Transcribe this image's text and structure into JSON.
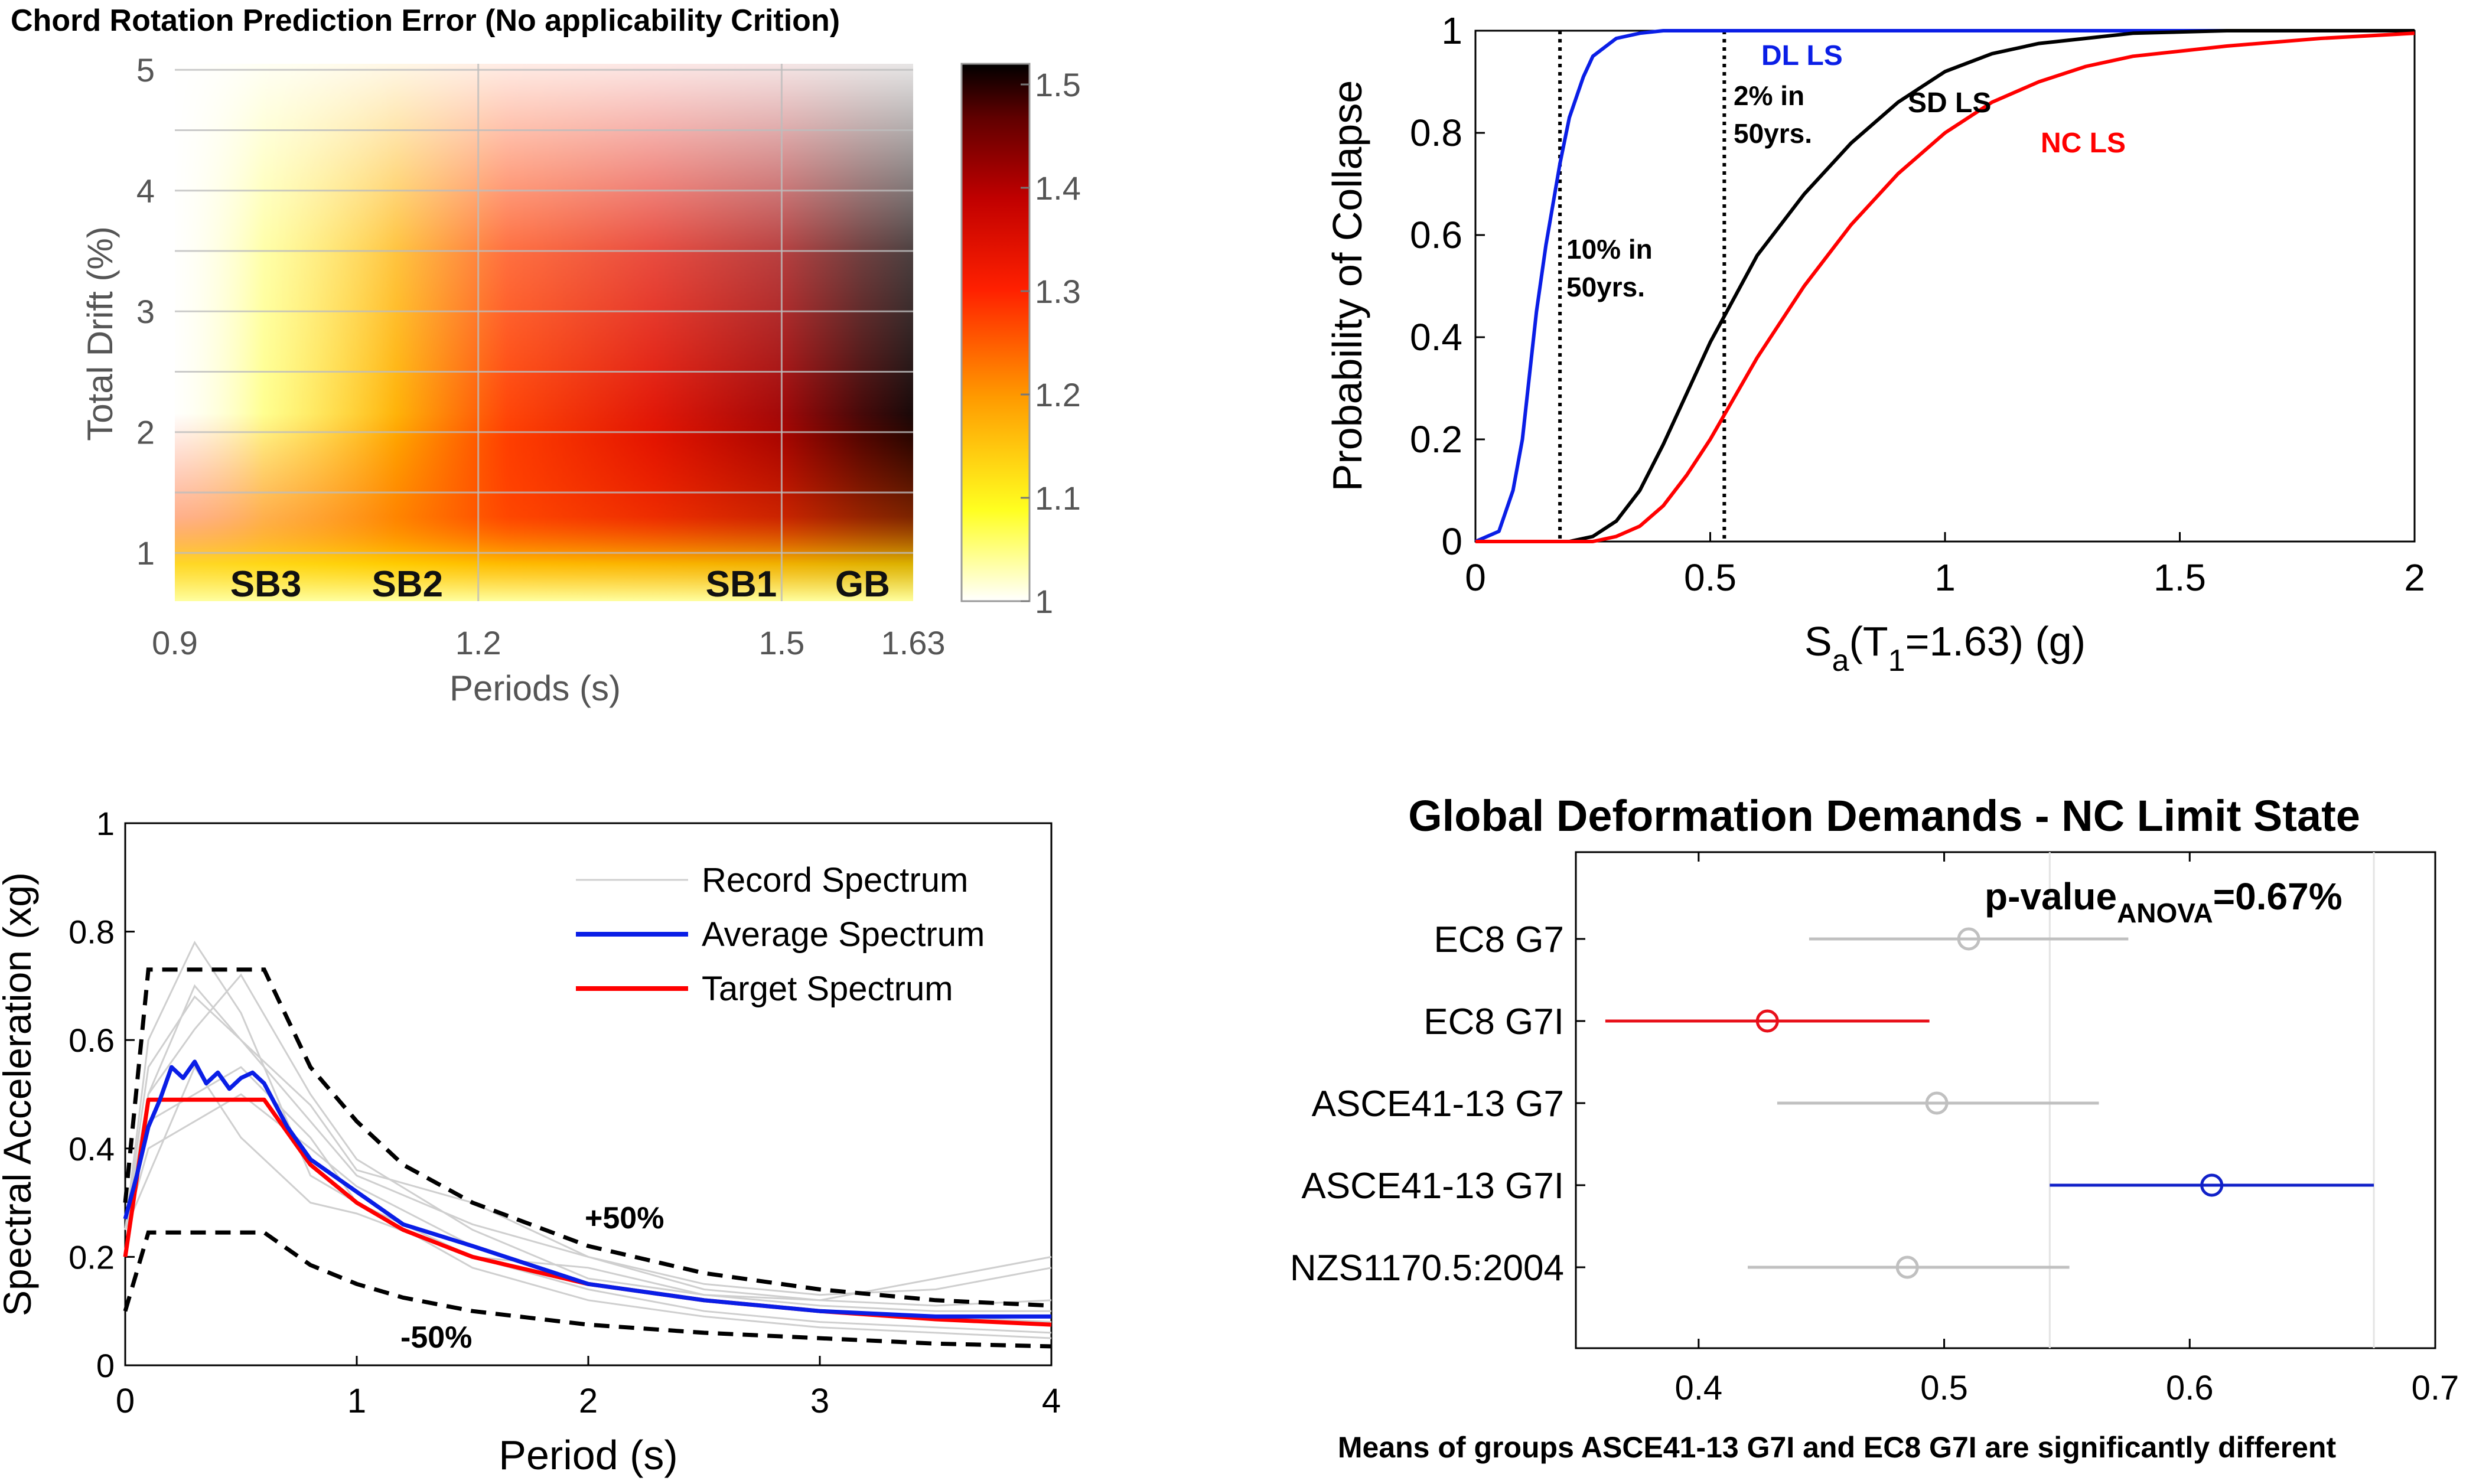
{
  "chart_data": [
    {
      "type": "heatmap",
      "title": "Chord Rotation Prediction Error (No applicability Crition)",
      "xlabel": "Periods (s)",
      "ylabel": "Total Drift (%)",
      "x_ticks": [
        "0.9",
        "1.2",
        "1.5",
        "1.63"
      ],
      "x_tick_values": [
        0.9,
        1.2,
        1.5,
        1.63
      ],
      "y_ticks": [
        "1",
        "2",
        "3",
        "4",
        "5"
      ],
      "xlim": [
        0.9,
        1.63
      ],
      "ylim": [
        0.6,
        5.05
      ],
      "grid": true,
      "colorbar": {
        "ticks": [
          "1",
          "1.1",
          "1.2",
          "1.3",
          "1.4",
          "1.5"
        ],
        "range": [
          1.0,
          1.52
        ],
        "colors": [
          "#ffffff",
          "#ffff20",
          "#ff9a00",
          "#ff2000",
          "#c00000",
          "#600000",
          "#000000"
        ]
      },
      "region_labels": [
        {
          "text": "SB3",
          "x": 0.99
        },
        {
          "text": "SB2",
          "x": 1.13
        },
        {
          "text": "SB1",
          "x": 1.46
        },
        {
          "text": "GB",
          "x": 1.58
        }
      ]
    },
    {
      "type": "line",
      "xlabel_parts": [
        "S",
        "a",
        "(T",
        "1",
        "=1.63) (g)"
      ],
      "ylabel": "Probability of Collapse",
      "xlim": [
        0,
        2
      ],
      "ylim": [
        0,
        1
      ],
      "x_ticks": [
        "0",
        "0.5",
        "1",
        "1.5",
        "2"
      ],
      "y_ticks": [
        "0",
        "0.2",
        "0.4",
        "0.6",
        "0.8",
        "1"
      ],
      "series": [
        {
          "name": "DL LS",
          "color": "#0a1ee6",
          "x": [
            0.0,
            0.05,
            0.08,
            0.1,
            0.13,
            0.15,
            0.18,
            0.2,
            0.23,
            0.25,
            0.3,
            0.35,
            0.4,
            0.5,
            2.0
          ],
          "y": [
            0.0,
            0.02,
            0.1,
            0.2,
            0.45,
            0.58,
            0.74,
            0.83,
            0.91,
            0.95,
            0.985,
            0.995,
            1.0,
            1.0,
            1.0
          ]
        },
        {
          "name": "SD LS",
          "color": "#000000",
          "x": [
            0.0,
            0.2,
            0.25,
            0.3,
            0.35,
            0.4,
            0.45,
            0.5,
            0.6,
            0.7,
            0.8,
            0.9,
            1.0,
            1.1,
            1.2,
            1.4,
            1.6,
            2.0
          ],
          "y": [
            0.0,
            0.0,
            0.01,
            0.04,
            0.1,
            0.19,
            0.29,
            0.39,
            0.56,
            0.68,
            0.78,
            0.86,
            0.92,
            0.955,
            0.975,
            0.995,
            1.0,
            1.0
          ]
        },
        {
          "name": "NC LS",
          "color": "#ff0000",
          "x": [
            0.0,
            0.25,
            0.3,
            0.35,
            0.4,
            0.45,
            0.5,
            0.55,
            0.6,
            0.7,
            0.8,
            0.9,
            1.0,
            1.1,
            1.2,
            1.3,
            1.4,
            1.6,
            1.8,
            2.0
          ],
          "y": [
            0.0,
            0.0,
            0.01,
            0.03,
            0.07,
            0.13,
            0.2,
            0.28,
            0.36,
            0.5,
            0.62,
            0.72,
            0.8,
            0.86,
            0.9,
            0.93,
            0.95,
            0.97,
            0.985,
            0.995
          ]
        }
      ],
      "vlines": [
        0.18,
        0.53
      ],
      "annotations": [
        {
          "lines": [
            "10% in",
            "50yrs."
          ]
        },
        {
          "lines": [
            "2% in",
            "50yrs."
          ]
        }
      ]
    },
    {
      "type": "line",
      "xlabel": "Period (s)",
      "ylabel": "Spectral Acceleration (xg)",
      "xlim": [
        0,
        4
      ],
      "ylim": [
        0,
        1
      ],
      "x_ticks": [
        "0",
        "1",
        "2",
        "3",
        "4"
      ],
      "y_ticks": [
        "0",
        "0.2",
        "0.4",
        "0.6",
        "0.8",
        "1"
      ],
      "legend": [
        "Record Spectrum",
        "Average Spectrum",
        "Target Spectrum"
      ],
      "legend_position": "top-right",
      "target": {
        "x": [
          0.0,
          0.1,
          0.6,
          0.8,
          1.0,
          1.2,
          1.5,
          2.0,
          2.5,
          3.0,
          3.5,
          4.0
        ],
        "y": [
          0.2,
          0.49,
          0.49,
          0.37,
          0.3,
          0.25,
          0.2,
          0.15,
          0.12,
          0.1,
          0.085,
          0.075
        ]
      },
      "average": {
        "x": [
          0.0,
          0.05,
          0.1,
          0.15,
          0.2,
          0.25,
          0.3,
          0.35,
          0.4,
          0.45,
          0.5,
          0.55,
          0.6,
          0.7,
          0.8,
          1.0,
          1.2,
          1.5,
          2.0,
          2.5,
          3.0,
          3.5,
          4.0
        ],
        "y": [
          0.27,
          0.35,
          0.44,
          0.49,
          0.55,
          0.53,
          0.56,
          0.52,
          0.54,
          0.51,
          0.53,
          0.54,
          0.52,
          0.44,
          0.38,
          0.32,
          0.26,
          0.22,
          0.15,
          0.12,
          0.1,
          0.09,
          0.09
        ]
      },
      "upper_bound": {
        "name": "+50%",
        "x": [
          0.0,
          0.1,
          0.6,
          0.8,
          1.0,
          1.2,
          1.5,
          2.0,
          2.5,
          3.0,
          3.5,
          4.0
        ],
        "y": [
          0.3,
          0.73,
          0.73,
          0.55,
          0.45,
          0.37,
          0.3,
          0.22,
          0.17,
          0.14,
          0.12,
          0.11
        ]
      },
      "lower_bound": {
        "name": "-50%",
        "x": [
          0.0,
          0.1,
          0.6,
          0.8,
          1.0,
          1.2,
          1.5,
          2.0,
          2.5,
          3.0,
          3.5,
          4.0
        ],
        "y": [
          0.1,
          0.245,
          0.245,
          0.185,
          0.15,
          0.125,
          0.1,
          0.075,
          0.06,
          0.05,
          0.04,
          0.035
        ]
      },
      "records": [
        {
          "x": [
            0.0,
            0.1,
            0.3,
            0.5,
            0.8,
            1.0,
            1.5,
            2.0,
            2.5,
            3.0,
            3.5,
            4.0
          ],
          "y": [
            0.25,
            0.5,
            0.7,
            0.6,
            0.45,
            0.35,
            0.26,
            0.2,
            0.15,
            0.13,
            0.14,
            0.18
          ]
        },
        {
          "x": [
            0.0,
            0.1,
            0.3,
            0.5,
            0.8,
            1.0,
            1.5,
            2.0,
            2.5,
            3.0,
            3.5,
            4.0
          ],
          "y": [
            0.25,
            0.4,
            0.45,
            0.5,
            0.4,
            0.33,
            0.22,
            0.15,
            0.12,
            0.1,
            0.09,
            0.08
          ]
        },
        {
          "x": [
            0.0,
            0.1,
            0.3,
            0.5,
            0.8,
            1.0,
            1.5,
            2.0,
            2.5,
            3.0,
            3.5,
            4.0
          ],
          "y": [
            0.25,
            0.6,
            0.78,
            0.65,
            0.35,
            0.3,
            0.2,
            0.18,
            0.13,
            0.11,
            0.1,
            0.1
          ]
        },
        {
          "x": [
            0.0,
            0.1,
            0.3,
            0.5,
            0.8,
            1.0,
            1.5,
            2.0,
            2.5,
            3.0,
            3.5,
            4.0
          ],
          "y": [
            0.25,
            0.35,
            0.55,
            0.42,
            0.3,
            0.28,
            0.2,
            0.14,
            0.1,
            0.08,
            0.07,
            0.06
          ]
        },
        {
          "x": [
            0.0,
            0.1,
            0.3,
            0.5,
            0.8,
            1.0,
            1.5,
            2.0,
            2.5,
            3.0,
            3.5,
            4.0
          ],
          "y": [
            0.25,
            0.5,
            0.62,
            0.72,
            0.5,
            0.38,
            0.25,
            0.16,
            0.13,
            0.12,
            0.16,
            0.2
          ]
        },
        {
          "x": [
            0.0,
            0.1,
            0.3,
            0.5,
            0.8,
            1.0,
            1.5,
            2.0,
            2.5,
            3.0,
            3.5,
            4.0
          ],
          "y": [
            0.25,
            0.45,
            0.5,
            0.55,
            0.42,
            0.3,
            0.18,
            0.12,
            0.09,
            0.07,
            0.06,
            0.05
          ]
        },
        {
          "x": [
            0.0,
            0.1,
            0.3,
            0.5,
            0.8,
            1.0,
            1.5,
            2.0,
            2.5,
            3.0,
            3.5,
            4.0
          ],
          "y": [
            0.25,
            0.55,
            0.68,
            0.6,
            0.48,
            0.36,
            0.3,
            0.2,
            0.14,
            0.12,
            0.11,
            0.12
          ]
        }
      ]
    },
    {
      "type": "scatter",
      "title": "Global Deformation Demands - NC Limit State",
      "annotation_parts": [
        "p-value",
        "ANOVA",
        "=0.67%"
      ],
      "footer": "Means of groups ASCE41-13 G7I and EC8 G7I are significantly different",
      "xlim": [
        0.35,
        0.7
      ],
      "x_ticks": [
        "0.4",
        "0.5",
        "0.6",
        "0.7"
      ],
      "x_tick_values": [
        0.4,
        0.5,
        0.6,
        0.7
      ],
      "groups": [
        {
          "name": "EC8 G7",
          "mean": 0.51,
          "low": 0.445,
          "high": 0.575,
          "color": "#c0c0c0"
        },
        {
          "name": "EC8 G7I",
          "mean": 0.428,
          "low": 0.362,
          "high": 0.494,
          "color": "#e8101a"
        },
        {
          "name": "ASCE41-13 G7",
          "mean": 0.497,
          "low": 0.432,
          "high": 0.563,
          "color": "#c0c0c0"
        },
        {
          "name": "ASCE41-13 G7I",
          "mean": 0.609,
          "low": 0.543,
          "high": 0.675,
          "color": "#1020c8"
        },
        {
          "name": "NZS1170.5:2004",
          "mean": 0.485,
          "low": 0.42,
          "high": 0.551,
          "color": "#c0c0c0"
        }
      ]
    }
  ]
}
